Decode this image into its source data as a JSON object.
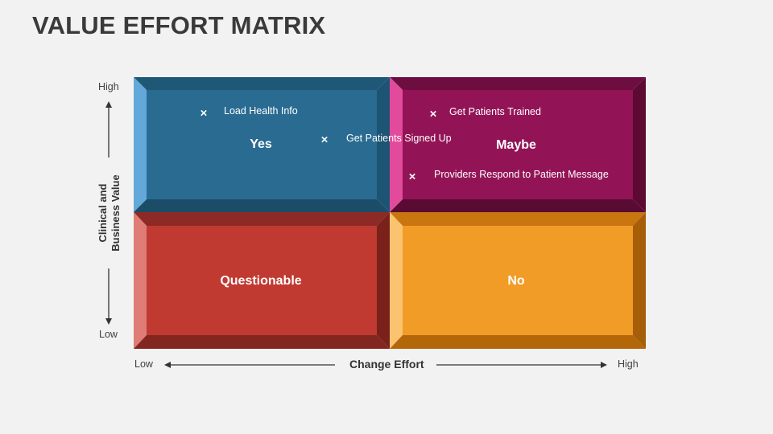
{
  "title": "VALUE EFFORT MATRIX",
  "y_axis": {
    "title_line1": "Clinical and",
    "title_line2": "Business Value",
    "high": "High",
    "low": "Low"
  },
  "x_axis": {
    "title": "Change Effort",
    "low": "Low",
    "high": "High"
  },
  "quadrants": {
    "yes": {
      "label": "Yes",
      "color": "#2a6b91"
    },
    "maybe": {
      "label": "Maybe",
      "color": "#931456"
    },
    "questionable": {
      "label": "Questionable",
      "color": "#c03a31"
    },
    "no": {
      "label": "No",
      "color": "#f29c28"
    }
  },
  "items": [
    {
      "label": "Load Health Info",
      "marker": "×"
    },
    {
      "label": "Get Patients Signed Up",
      "marker": "×"
    },
    {
      "label": "Get Patients Trained",
      "marker": "×"
    },
    {
      "label": "Providers Respond to Patient Message",
      "marker": "×"
    }
  ]
}
